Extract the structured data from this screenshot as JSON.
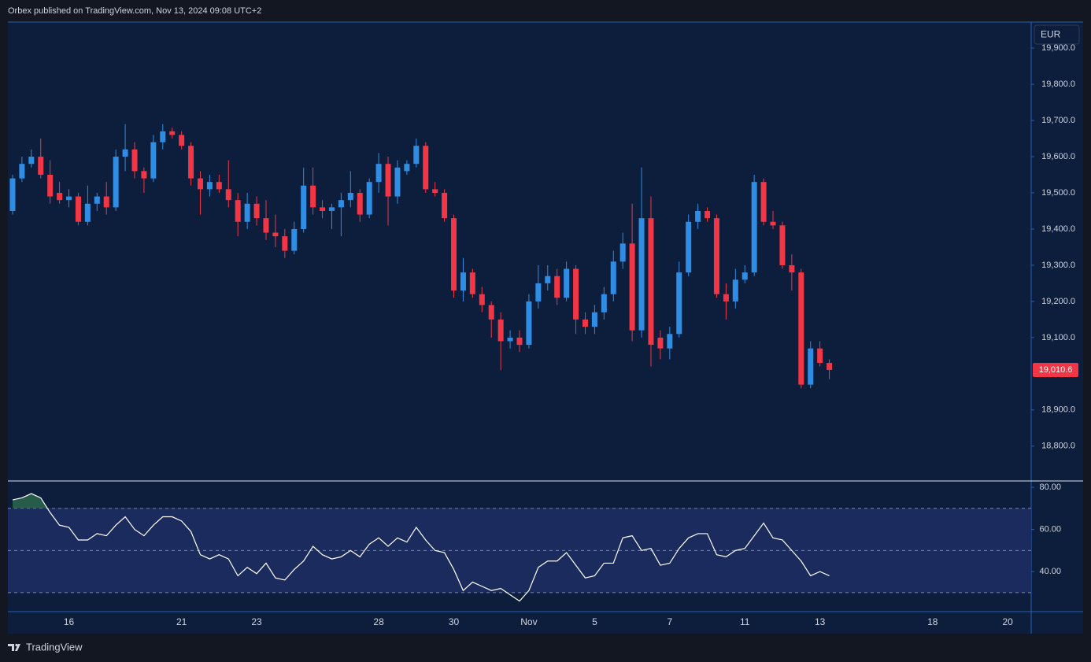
{
  "header": "Orbex published on TradingView.com, Nov 13, 2024 09:08 UTC+2",
  "currency": "EUR",
  "footer": "TradingView",
  "chart_data": [
    {
      "type": "candlestick",
      "categories": [
        null,
        null,
        null,
        null,
        null,
        null,
        "16",
        null,
        null,
        null,
        null,
        null,
        null,
        null,
        null,
        null,
        null,
        null,
        "21",
        null,
        null,
        null,
        null,
        null,
        null,
        null,
        "23",
        null,
        null,
        null,
        null,
        null,
        null,
        null,
        null,
        null,
        null,
        null,
        null,
        "28",
        null,
        null,
        null,
        null,
        null,
        null,
        null,
        "30",
        null,
        null,
        null,
        null,
        null,
        null,
        null,
        "Nov",
        null,
        null,
        null,
        null,
        null,
        null,
        "5",
        null,
        null,
        null,
        null,
        null,
        null,
        null,
        "7",
        null,
        null,
        null,
        null,
        null,
        null,
        null,
        "11",
        null,
        null,
        null,
        null,
        null,
        null,
        null,
        "13",
        null,
        null,
        null,
        null,
        null,
        null,
        null,
        null,
        null,
        null,
        null,
        "18",
        null,
        null,
        null,
        null,
        null,
        null,
        null,
        "20",
        null,
        null
      ],
      "open": [
        19450,
        19540,
        19580,
        19600,
        19550,
        19500,
        19480,
        19490,
        19420,
        19470,
        19490,
        19460,
        19600,
        19620,
        19560,
        19540,
        19640,
        19670,
        19660,
        19630,
        19540,
        19510,
        19530,
        19510,
        19480,
        19420,
        19470,
        19430,
        19390,
        19380,
        19340,
        19400,
        19520,
        19460,
        19450,
        19460,
        19480,
        19500,
        19440,
        19530,
        19580,
        19490,
        19560,
        19580,
        19630,
        19510,
        19500,
        19430,
        19230,
        19280,
        19220,
        19190,
        19150,
        19090,
        19100,
        19080,
        19200,
        19250,
        19270,
        19210,
        19290,
        19150,
        19130,
        19170,
        19220,
        19310,
        19360,
        19120,
        19430,
        19100,
        19070,
        19110,
        19280,
        19420,
        19450,
        19430,
        19220,
        19200,
        19260,
        19280,
        19530,
        19420,
        19410,
        19300,
        19280,
        18970,
        19070,
        19030,
        null,
        null,
        null,
        null,
        null,
        null,
        null,
        null,
        null,
        null,
        null,
        null,
        null,
        null,
        null,
        null,
        null,
        null,
        null,
        null,
        null
      ],
      "high": [
        19550,
        19600,
        19620,
        19650,
        19590,
        19530,
        19510,
        19500,
        19520,
        19500,
        19530,
        19620,
        19690,
        19640,
        19570,
        19660,
        19690,
        19680,
        19670,
        19640,
        19560,
        19550,
        19550,
        19590,
        19500,
        19500,
        19490,
        19480,
        19440,
        19400,
        19420,
        19570,
        19570,
        19480,
        19470,
        19500,
        19560,
        19510,
        19540,
        19610,
        19600,
        19590,
        19590,
        19650,
        19640,
        19530,
        19510,
        19440,
        19320,
        19290,
        19240,
        19200,
        19170,
        19120,
        19120,
        19220,
        19300,
        19300,
        19290,
        19310,
        19300,
        19170,
        19190,
        19240,
        19340,
        19390,
        19470,
        19570,
        19490,
        19120,
        19130,
        19310,
        19440,
        19470,
        19460,
        19440,
        19250,
        19290,
        19300,
        19550,
        19540,
        19450,
        19420,
        19330,
        19290,
        19090,
        19090,
        19040,
        null,
        null,
        null,
        null,
        null,
        null,
        null,
        null,
        null,
        null,
        null,
        null,
        null,
        null,
        null,
        null,
        null,
        null,
        null,
        null,
        null
      ],
      "low": [
        19440,
        19530,
        19570,
        19540,
        19470,
        19470,
        19460,
        19410,
        19410,
        19450,
        19440,
        19450,
        19560,
        19540,
        19500,
        19530,
        19620,
        19650,
        19620,
        19520,
        19440,
        19490,
        19500,
        19460,
        19380,
        19400,
        19410,
        19370,
        19350,
        19320,
        19330,
        19390,
        19440,
        19430,
        19400,
        19380,
        19460,
        19420,
        19430,
        19500,
        19410,
        19470,
        19550,
        19570,
        19500,
        19490,
        19420,
        19210,
        19200,
        19210,
        19170,
        19100,
        19010,
        19070,
        19060,
        19070,
        19180,
        19230,
        19190,
        19200,
        19110,
        19110,
        19110,
        19150,
        19200,
        19290,
        19090,
        19100,
        19020,
        19040,
        19040,
        19100,
        19270,
        19400,
        19420,
        19210,
        19150,
        19180,
        19250,
        19270,
        19410,
        19400,
        19290,
        19230,
        18960,
        18960,
        19020,
        18985,
        null,
        null,
        null,
        null,
        null,
        null,
        null,
        null,
        null,
        null,
        null,
        null,
        null,
        null,
        null,
        null,
        null,
        null,
        null,
        null,
        null
      ],
      "close": [
        19540,
        19580,
        19600,
        19550,
        19490,
        19480,
        19490,
        19420,
        19470,
        19490,
        19460,
        19600,
        19620,
        19560,
        19540,
        19640,
        19670,
        19660,
        19630,
        19540,
        19510,
        19530,
        19510,
        19480,
        19420,
        19470,
        19430,
        19390,
        19380,
        19340,
        19400,
        19520,
        19460,
        19450,
        19460,
        19480,
        19500,
        19440,
        19530,
        19580,
        19490,
        19570,
        19580,
        19630,
        19510,
        19500,
        19430,
        19230,
        19280,
        19220,
        19190,
        19150,
        19090,
        19100,
        19080,
        19200,
        19250,
        19270,
        19210,
        19290,
        19150,
        19130,
        19170,
        19220,
        19310,
        19360,
        19120,
        19430,
        19080,
        19070,
        19110,
        19280,
        19420,
        19450,
        19430,
        19220,
        19200,
        19260,
        19280,
        19530,
        19420,
        19410,
        19300,
        19280,
        18970,
        19070,
        19030,
        19010.6,
        null,
        null,
        null,
        null,
        null,
        null,
        null,
        null,
        null,
        null,
        null,
        null,
        null,
        null,
        null,
        null,
        null,
        null,
        null,
        null,
        null
      ],
      "up_color": "#2f8de4",
      "down_color": "#f23645",
      "last_price_label": "19,010.6",
      "ylim": [
        18706,
        19972
      ],
      "yticks": [
        {
          "value": 19900,
          "label": "19,900.0"
        },
        {
          "value": 19800,
          "label": "19,800.0"
        },
        {
          "value": 19700,
          "label": "19,700.0"
        },
        {
          "value": 19600,
          "label": "19,600.0"
        },
        {
          "value": 19500,
          "label": "19,500.0"
        },
        {
          "value": 19400,
          "label": "19,400.0"
        },
        {
          "value": 19300,
          "label": "19,300.0"
        },
        {
          "value": 19200,
          "label": "19,200.0"
        },
        {
          "value": 19100,
          "label": "19,100.0"
        },
        {
          "value": 18900,
          "label": "18,900.0"
        },
        {
          "value": 18800,
          "label": "18,800.0"
        }
      ]
    },
    {
      "type": "line",
      "values": [
        74,
        75,
        77,
        75,
        68,
        62,
        61,
        55,
        55,
        58,
        57,
        62,
        66,
        60,
        57,
        62,
        66,
        66,
        64,
        59,
        48,
        46,
        48,
        46,
        38,
        42,
        39,
        44,
        37,
        36,
        41,
        45,
        52,
        48,
        46,
        47,
        50,
        47,
        53,
        56,
        52,
        56,
        54,
        61,
        55,
        50,
        49,
        41,
        31,
        35,
        33,
        31,
        32,
        29,
        26,
        31,
        42,
        45,
        45,
        49,
        43,
        37,
        38,
        44,
        44,
        56,
        57,
        50,
        51,
        43,
        44,
        51,
        56,
        58,
        58,
        48,
        47,
        50,
        51,
        57,
        63,
        56,
        55,
        50,
        45,
        38,
        40,
        38,
        null,
        null,
        null,
        null,
        null,
        null,
        null,
        null,
        null,
        null,
        null,
        null,
        null,
        null,
        null,
        null,
        null,
        null,
        null,
        null,
        null
      ],
      "color": "#ffffff",
      "band_color": "#1b2b5e",
      "overbought_color": "#2e6b4f",
      "levels": [
        70,
        50,
        30
      ],
      "ylim": [
        21,
        83
      ],
      "yticks": [
        {
          "value": 80,
          "label": "80.00"
        },
        {
          "value": 60,
          "label": "60.00"
        },
        {
          "value": 40,
          "label": "40.00"
        }
      ]
    }
  ]
}
